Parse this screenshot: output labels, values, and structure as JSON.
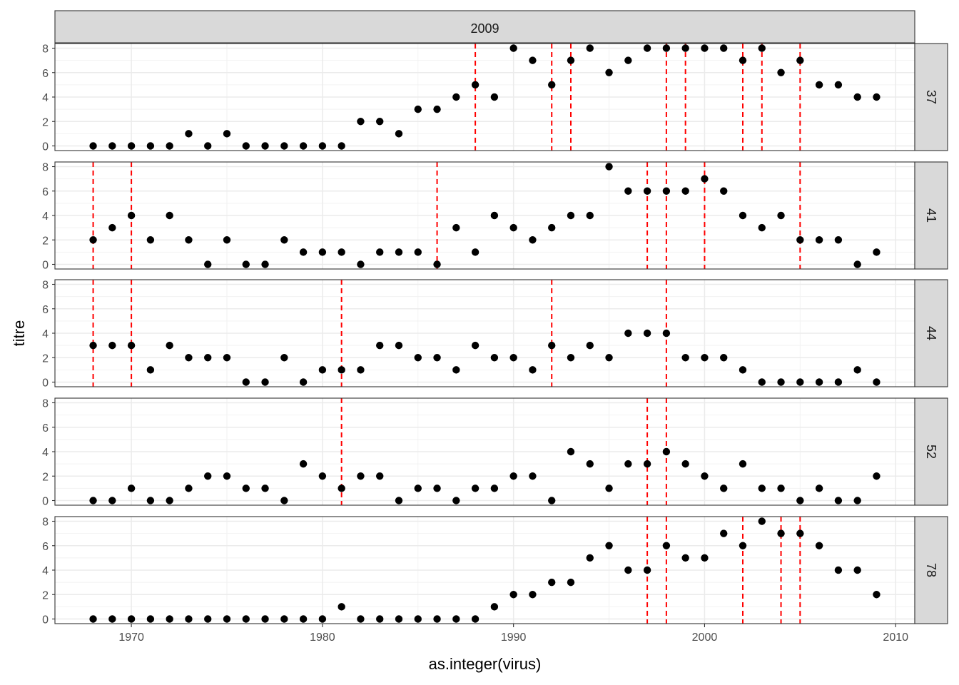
{
  "chart_data": {
    "type": "scatter",
    "facet_title": "2009",
    "xlabel": "as.integer(virus)",
    "ylabel": "titre",
    "xlim": [
      1966,
      2011
    ],
    "ylim": [
      0,
      8
    ],
    "x_ticks": [
      1970,
      1980,
      1990,
      2000,
      2010
    ],
    "x_tick_labels": [
      "1970",
      "1980",
      "1990",
      "2000",
      "2010"
    ],
    "y_ticks": [
      0,
      2,
      4,
      6,
      8
    ],
    "y_tick_labels": [
      "0",
      "2",
      "4",
      "6",
      "8"
    ],
    "grid": true,
    "point_color": "#000000",
    "vline_color": "#ff0000",
    "x": [
      1968,
      1969,
      1970,
      1971,
      1972,
      1973,
      1974,
      1975,
      1976,
      1977,
      1978,
      1979,
      1980,
      1981,
      1982,
      1983,
      1984,
      1985,
      1986,
      1987,
      1988,
      1989,
      1990,
      1991,
      1992,
      1993,
      1994,
      1995,
      1996,
      1997,
      1998,
      1999,
      2000,
      2001,
      2002,
      2003,
      2004,
      2005,
      2006,
      2007,
      2008,
      2009
    ],
    "panels": [
      {
        "label": "37",
        "y": [
          0,
          0,
          0,
          0,
          0,
          1,
          0,
          1,
          0,
          0,
          0,
          0,
          0,
          0,
          2,
          2,
          1,
          3,
          3,
          4,
          5,
          4,
          8,
          7,
          5,
          7,
          8,
          6,
          7,
          8,
          8,
          8,
          8,
          8,
          7,
          8,
          6,
          7,
          5,
          5,
          4,
          4
        ],
        "vlines": [
          1988,
          1992,
          1993,
          1998,
          1999,
          2002,
          2003,
          2005
        ]
      },
      {
        "label": "41",
        "y": [
          2,
          3,
          4,
          2,
          4,
          2,
          0,
          2,
          0,
          0,
          2,
          1,
          1,
          1,
          0,
          1,
          1,
          1,
          0,
          3,
          1,
          4,
          3,
          2,
          3,
          4,
          4,
          8,
          6,
          6,
          6,
          6,
          7,
          6,
          4,
          3,
          4,
          2,
          2,
          2,
          0,
          1
        ],
        "vlines": [
          1968,
          1970,
          1986,
          1997,
          1998,
          2000,
          2005
        ]
      },
      {
        "label": "44",
        "y": [
          3,
          3,
          3,
          1,
          3,
          2,
          2,
          2,
          0,
          0,
          2,
          0,
          1,
          1,
          1,
          3,
          3,
          2,
          2,
          1,
          3,
          2,
          2,
          1,
          3,
          2,
          3,
          2,
          4,
          4,
          4,
          2,
          2,
          2,
          1,
          0,
          0,
          0,
          0,
          0,
          1,
          0
        ],
        "vlines": [
          1968,
          1970,
          1981,
          1992,
          1998
        ]
      },
      {
        "label": "52",
        "y": [
          0,
          0,
          1,
          0,
          0,
          1,
          2,
          2,
          1,
          1,
          0,
          3,
          2,
          1,
          2,
          2,
          0,
          1,
          1,
          0,
          1,
          1,
          2,
          2,
          0,
          4,
          3,
          1,
          3,
          3,
          4,
          3,
          2,
          1,
          3,
          1,
          1,
          0,
          1,
          0,
          0,
          2
        ],
        "vlines": [
          1981,
          1997,
          1998
        ]
      },
      {
        "label": "78",
        "y": [
          0,
          0,
          0,
          0,
          0,
          0,
          0,
          0,
          0,
          0,
          0,
          0,
          0,
          1,
          0,
          0,
          0,
          0,
          0,
          0,
          0,
          1,
          2,
          2,
          3,
          3,
          5,
          6,
          4,
          4,
          6,
          5,
          5,
          7,
          6,
          8,
          7,
          7,
          6,
          4,
          4,
          2
        ],
        "vlines": [
          1997,
          1998,
          2002,
          2004,
          2005
        ]
      }
    ]
  }
}
